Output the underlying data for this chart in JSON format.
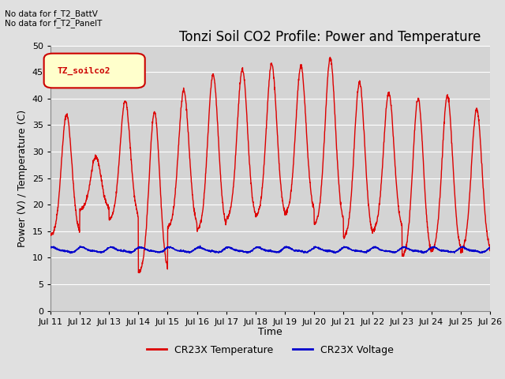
{
  "title": "Tonzi Soil CO2 Profile: Power and Temperature",
  "xlabel": "Time",
  "ylabel": "Power (V) / Temperature (C)",
  "ylim": [
    0,
    50
  ],
  "yticks": [
    0,
    5,
    10,
    15,
    20,
    25,
    30,
    35,
    40,
    45,
    50
  ],
  "x_labels": [
    "Jul 11",
    "Jul 12",
    "Jul 13",
    "Jul 14",
    "Jul 15",
    "Jul 16",
    "Jul 17",
    "Jul 18",
    "Jul 19",
    "Jul 20",
    "Jul 21",
    "Jul 22",
    "Jul 23",
    "Jul 24",
    "Jul 25",
    "Jul 26"
  ],
  "annotation_text": "No data for f_T2_BattV\nNo data for f_T2_PanelT",
  "legend_box_text": "TZ_soilco2",
  "legend_box_color": "#ffffcc",
  "legend_box_border": "#cc0000",
  "background_color": "#e0e0e0",
  "plot_bg_color": "#d4d4d4",
  "grid_color": "#ffffff",
  "temp_color": "#dd0000",
  "volt_color": "#0000cc",
  "temp_linewidth": 1.0,
  "volt_linewidth": 1.0,
  "title_fontsize": 12,
  "axis_fontsize": 9,
  "tick_fontsize": 8,
  "num_days": 15,
  "temp_peaks": [
    37.0,
    29.0,
    39.5,
    37.5,
    41.5,
    44.5,
    45.5,
    46.5,
    46.0,
    47.5,
    43.0,
    41.0,
    40.0,
    40.5,
    38.0
  ],
  "temp_troughs": [
    14.0,
    19.0,
    17.0,
    7.0,
    15.5,
    15.0,
    17.0,
    17.5,
    18.0,
    16.0,
    13.5,
    15.0,
    10.0,
    11.0,
    11.0
  ],
  "volt_base": 11.8,
  "volt_amplitude": 0.7
}
